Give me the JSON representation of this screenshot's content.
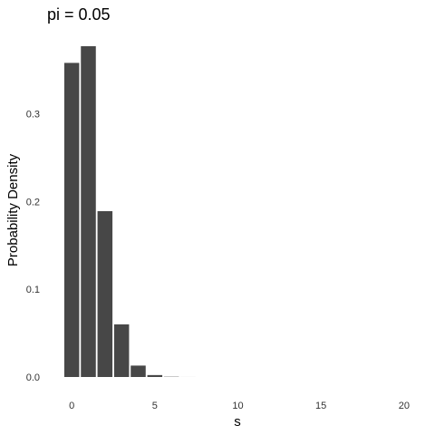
{
  "chart_data": {
    "type": "bar",
    "title": "pi = 0.05",
    "xlabel": "s",
    "ylabel": "Probability Density",
    "x": [
      0,
      1,
      2,
      3,
      4,
      5,
      6,
      7,
      8,
      9,
      10,
      11,
      12,
      13,
      14,
      15,
      16,
      17,
      18,
      19,
      20
    ],
    "values": [
      0.358,
      0.377,
      0.189,
      0.06,
      0.013,
      0.0022,
      0.0003,
      3e-05,
      0,
      0,
      0,
      0,
      0,
      0,
      0,
      0,
      0,
      0,
      0,
      0,
      0
    ],
    "xticks": [
      "0",
      "5",
      "10",
      "15",
      "20"
    ],
    "yticks": [
      "0.0",
      "0.1",
      "0.2",
      "0.3"
    ],
    "xlim": [
      -0.5,
      20.5
    ],
    "ylim": [
      0,
      0.377
    ],
    "bar_color": "#474747",
    "grid": false
  }
}
